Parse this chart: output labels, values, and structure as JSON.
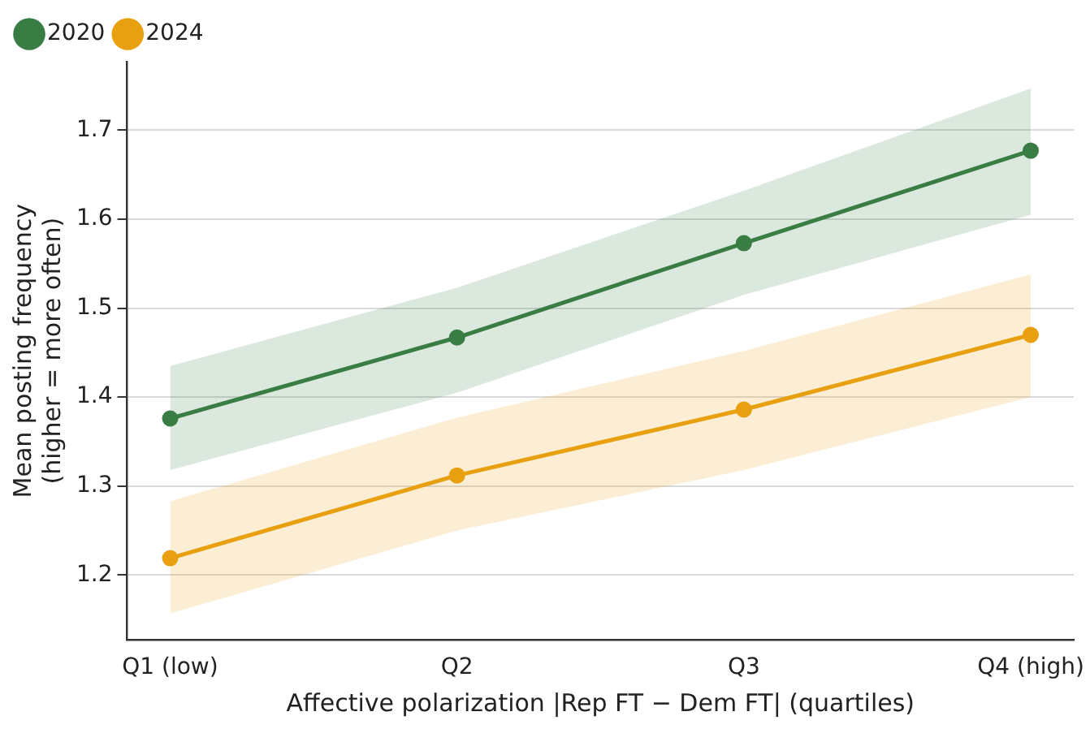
{
  "chart_data": {
    "type": "line",
    "xlabel": "Affective polarization |Rep FT − Dem FT| (quartiles)",
    "ylabel": "Mean posting frequency\n(higher = more often)",
    "categories": [
      "Q1 (low)",
      "Q2",
      "Q3",
      "Q4 (high)"
    ],
    "series": [
      {
        "name": "2020",
        "color": "#3a7d44",
        "values": [
          1.376,
          1.467,
          1.573,
          1.677
        ],
        "lower": [
          1.318,
          1.405,
          1.515,
          1.605
        ],
        "upper": [
          1.435,
          1.523,
          1.632,
          1.747
        ]
      },
      {
        "name": "2024",
        "color": "#e8a010",
        "values": [
          1.219,
          1.312,
          1.386,
          1.47
        ],
        "lower": [
          1.157,
          1.25,
          1.318,
          1.4
        ],
        "upper": [
          1.283,
          1.377,
          1.452,
          1.538
        ]
      }
    ],
    "ylim": [
      1.127,
      1.777
    ],
    "yticks": [
      1.2,
      1.3,
      1.4,
      1.5,
      1.6,
      1.7
    ],
    "grid": "y",
    "legend": "top left",
    "marker": "circle",
    "line_style": "solid"
  }
}
